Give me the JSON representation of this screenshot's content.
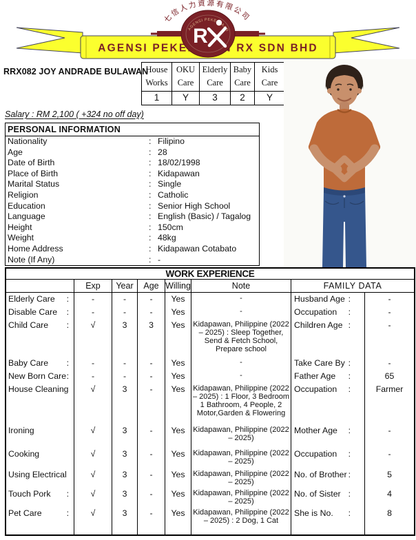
{
  "header": {
    "banner_text": "AGENSI PEKERJAAN RX SDN BHD",
    "chinese_arc_text": "七信人力資源有限公司",
    "logo_inner_arc_text": "AGENSI PEKERJAAN",
    "logo_letter": "R",
    "logo_monogram": "RX",
    "colors": {
      "maroon": "#7A2026",
      "ribbon_yellow": "#FBFF2E",
      "ribbon_outline": "#44445A",
      "logo_gold": "#D9B48A"
    }
  },
  "candidate": {
    "ref_name": "RRX082 JOY ANDRADE BULAWAN",
    "salary_line": "Salary : RM 2,100 ( +324 no off day)"
  },
  "skills": {
    "columns": [
      {
        "line1": "House",
        "line2": "Works",
        "value": "1"
      },
      {
        "line1": "OKU",
        "line2": "Care",
        "value": "Y"
      },
      {
        "line1": "Elderly",
        "line2": "Care",
        "value": "3"
      },
      {
        "line1": "Baby",
        "line2": "Care",
        "value": "2"
      },
      {
        "line1": "Kids",
        "line2": "Care",
        "value": "Y"
      }
    ]
  },
  "personal_information": {
    "title": "PERSONAL INFORMATION",
    "fields": [
      {
        "label": "Nationality",
        "value": "Filipino"
      },
      {
        "label": "Age",
        "value": "28"
      },
      {
        "label": "Date of Birth",
        "value": "18/02/1998"
      },
      {
        "label": "Place of Birth",
        "value": "Kidapawan"
      },
      {
        "label": "Marital Status",
        "value": "Single"
      },
      {
        "label": "Religion",
        "value": "Catholic"
      },
      {
        "label": "Education",
        "value": "Senior High School"
      },
      {
        "label": "Language",
        "value": "English (Basic) / Tagalog"
      },
      {
        "label": "Height",
        "value": "150cm"
      },
      {
        "label": "Weight",
        "value": "48kg"
      },
      {
        "label": "Home Address",
        "value": "Kidapawan Cotabato"
      },
      {
        "label": "Note (If Any)",
        "value": "-"
      }
    ]
  },
  "work_experience": {
    "title": "WORK EXPERIENCE",
    "column_headers": {
      "first": "",
      "exp": "Exp",
      "year": "Year",
      "age": "Age",
      "willing": "Willing",
      "note": "Note",
      "family": "FAMILY DATA"
    },
    "rows": [
      {
        "skill": "Elderly Care",
        "colon": ":",
        "exp": "-",
        "year": "-",
        "age": "-",
        "willing": "Yes",
        "note": "-",
        "family_label": "Husband Age",
        "family_colon": ":",
        "family_value": "-"
      },
      {
        "skill": "Disable Care",
        "colon": ":",
        "exp": "-",
        "year": "-",
        "age": "-",
        "willing": "Yes",
        "note": "-",
        "family_label": "Occupation",
        "family_colon": ":",
        "family_value": "-"
      },
      {
        "skill": "Child Care",
        "colon": ":",
        "exp": "√",
        "year": "3",
        "age": "3",
        "willing": "Yes",
        "note": "Kidapawan, Philippine (2022 – 2025) : Sleep Together, Send & Fetch School, Prepare school",
        "family_label": "Children Age",
        "family_colon": ":",
        "family_value": "-"
      },
      {
        "skill": "Baby Care",
        "colon": ":",
        "exp": "-",
        "year": "-",
        "age": "-",
        "willing": "Yes",
        "note": "-",
        "family_label": "Take Care By",
        "family_colon": ":",
        "family_value": "-"
      },
      {
        "skill": "New Born Care",
        "colon": ":",
        "exp": "-",
        "year": "-",
        "age": "-",
        "willing": "Yes",
        "note": "-",
        "family_label": "Father Age",
        "family_colon": ":",
        "family_value": "65"
      },
      {
        "skill": "House Cleaning",
        "colon": "",
        "exp": "√",
        "year": "3",
        "age": "-",
        "willing": "Yes",
        "note": "Kidapawan, Philippine (2022 – 2025) : 1 Floor, 3 Bedroom 1 Bathroom, 4 People, 2 Motor,Garden & Flowering",
        "family_label": "Occupation",
        "family_colon": ":",
        "family_value": "Farmer"
      },
      {
        "skill": "Ironing",
        "colon": "",
        "exp": "√",
        "year": "3",
        "age": "-",
        "willing": "Yes",
        "note": "Kidapawan, Philippine (2022 – 2025)",
        "family_label": "Mother Age",
        "family_colon": ":",
        "family_value": "-"
      },
      {
        "skill": "Cooking",
        "colon": "",
        "exp": "√",
        "year": "3",
        "age": "-",
        "willing": "Yes",
        "note": "Kidapawan, Philippine (2022 – 2025)",
        "family_label": "Occupation",
        "family_colon": ":",
        "family_value": "-"
      },
      {
        "skill": "Using Electrical",
        "colon": "",
        "exp": "√",
        "year": "3",
        "age": "-",
        "willing": "Yes",
        "note": "Kidapawan, Philippine (2022 – 2025)",
        "family_label": "No. of Brother",
        "family_colon": ":",
        "family_value": "5"
      },
      {
        "skill": "Touch Pork",
        "colon": ":",
        "exp": "√",
        "year": "3",
        "age": "-",
        "willing": "Yes",
        "note": "Kidapawan, Philippine (2022 – 2025)",
        "family_label": "No. of Sister",
        "family_colon": ":",
        "family_value": "4"
      },
      {
        "skill": "Pet Care",
        "colon": ":",
        "exp": "√",
        "year": "3",
        "age": "-",
        "willing": "Yes",
        "note": "Kidapawan, Philippine (2022 – 2025) : 2 Dog, 1 Cat",
        "family_label": "She is No.",
        "family_colon": ":",
        "family_value": "8"
      }
    ]
  },
  "photo": {
    "colors": {
      "shirt": "#BE6B3A",
      "jeans": "#35568C",
      "skin": "#C8906C",
      "hair": "#2E2119",
      "background": "#FAFAF7"
    }
  }
}
